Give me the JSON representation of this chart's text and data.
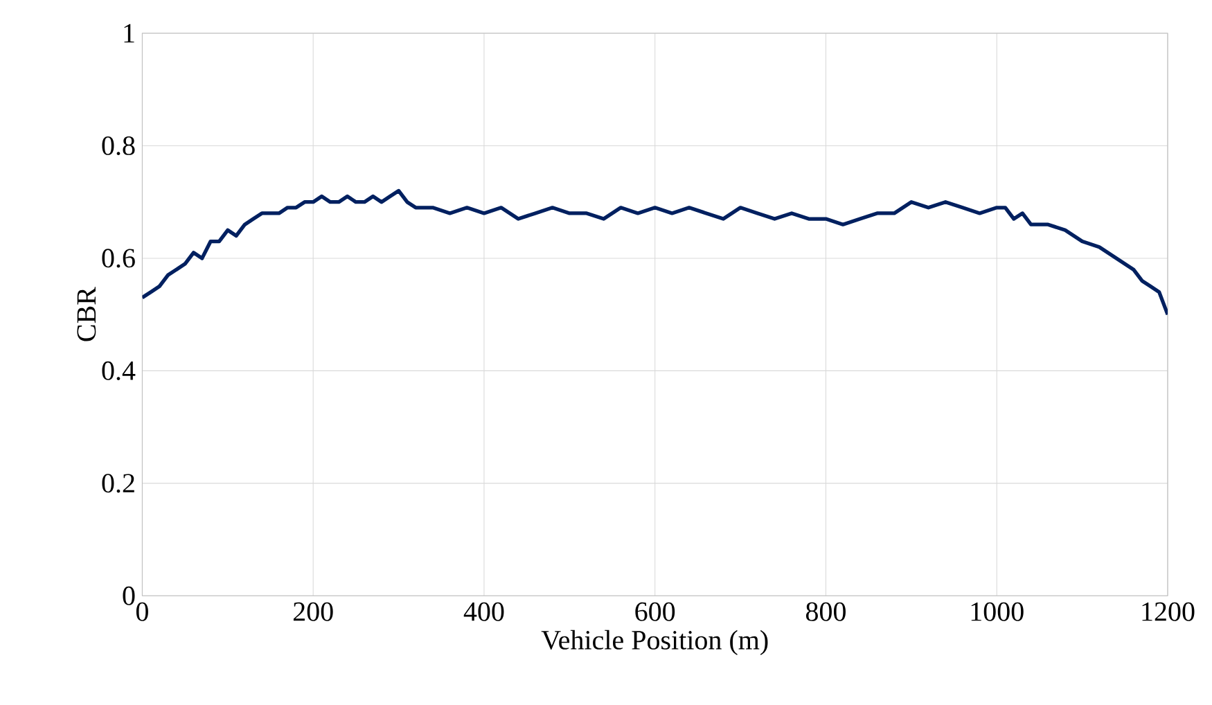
{
  "chart_data": {
    "type": "line",
    "xlabel": "Vehicle Position (m)",
    "ylabel": "CBR",
    "xlim": [
      0,
      1200
    ],
    "ylim": [
      0,
      1
    ],
    "xticks": [
      0,
      200,
      400,
      600,
      800,
      1000,
      1200
    ],
    "yticks": [
      0,
      0.2,
      0.4,
      0.6,
      0.8,
      1
    ],
    "grid": true,
    "marker": "none",
    "line_style": "solid",
    "series": [
      {
        "color": "#002060",
        "x": [
          0,
          10,
          20,
          30,
          40,
          50,
          60,
          70,
          80,
          90,
          100,
          110,
          120,
          130,
          140,
          150,
          160,
          170,
          180,
          190,
          200,
          210,
          220,
          230,
          240,
          250,
          260,
          270,
          280,
          290,
          300,
          310,
          320,
          340,
          360,
          380,
          400,
          420,
          440,
          460,
          480,
          500,
          520,
          540,
          560,
          580,
          600,
          620,
          640,
          660,
          680,
          700,
          720,
          740,
          760,
          780,
          800,
          820,
          840,
          860,
          880,
          900,
          920,
          940,
          960,
          980,
          1000,
          1010,
          1020,
          1030,
          1040,
          1060,
          1080,
          1100,
          1120,
          1140,
          1160,
          1170,
          1180,
          1190,
          1200
        ],
        "values": [
          0.53,
          0.54,
          0.55,
          0.57,
          0.58,
          0.59,
          0.61,
          0.6,
          0.63,
          0.63,
          0.65,
          0.64,
          0.66,
          0.67,
          0.68,
          0.68,
          0.68,
          0.69,
          0.69,
          0.7,
          0.7,
          0.71,
          0.7,
          0.7,
          0.71,
          0.7,
          0.7,
          0.71,
          0.7,
          0.71,
          0.72,
          0.7,
          0.69,
          0.69,
          0.68,
          0.69,
          0.68,
          0.69,
          0.67,
          0.68,
          0.69,
          0.68,
          0.68,
          0.67,
          0.69,
          0.68,
          0.69,
          0.68,
          0.69,
          0.68,
          0.67,
          0.69,
          0.68,
          0.67,
          0.68,
          0.67,
          0.67,
          0.66,
          0.67,
          0.68,
          0.68,
          0.7,
          0.69,
          0.7,
          0.69,
          0.68,
          0.69,
          0.69,
          0.67,
          0.68,
          0.66,
          0.66,
          0.65,
          0.63,
          0.62,
          0.6,
          0.58,
          0.56,
          0.55,
          0.54,
          0.5
        ]
      }
    ]
  }
}
